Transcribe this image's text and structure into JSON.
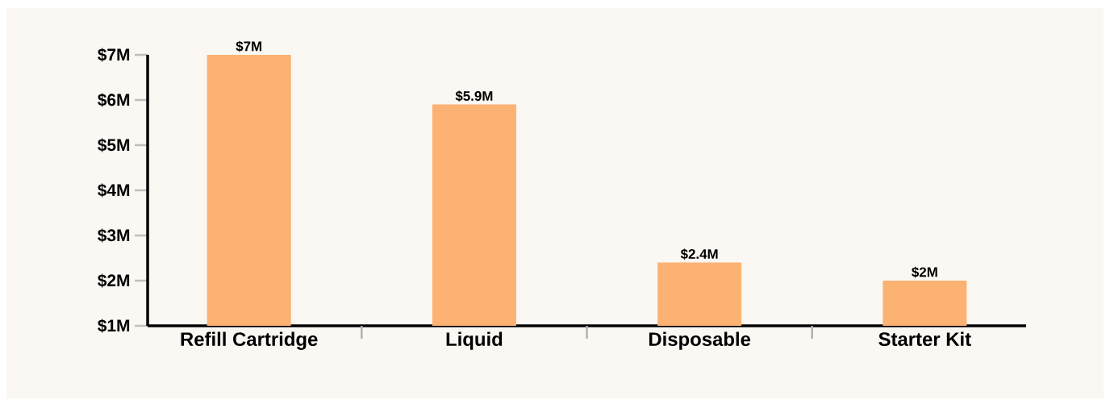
{
  "chart_data": {
    "type": "bar",
    "categories": [
      "Refill Cartridge",
      "Liquid",
      "Disposable",
      "Starter Kit"
    ],
    "values": [
      7,
      5.9,
      2.4,
      2
    ],
    "value_labels": [
      "$7M",
      "$5.9M",
      "$2.4M",
      "$2M"
    ],
    "color": "#fbb273",
    "ylim": [
      1,
      7
    ],
    "yticks": [
      {
        "value": 1,
        "label": "$1M"
      },
      {
        "value": 2,
        "label": "$2M"
      },
      {
        "value": 3,
        "label": "$3M"
      },
      {
        "value": 4,
        "label": "$4M"
      },
      {
        "value": 5,
        "label": "$5M"
      },
      {
        "value": 6,
        "label": "$6M"
      },
      {
        "value": 7,
        "label": "$7M"
      }
    ],
    "grid": false
  }
}
